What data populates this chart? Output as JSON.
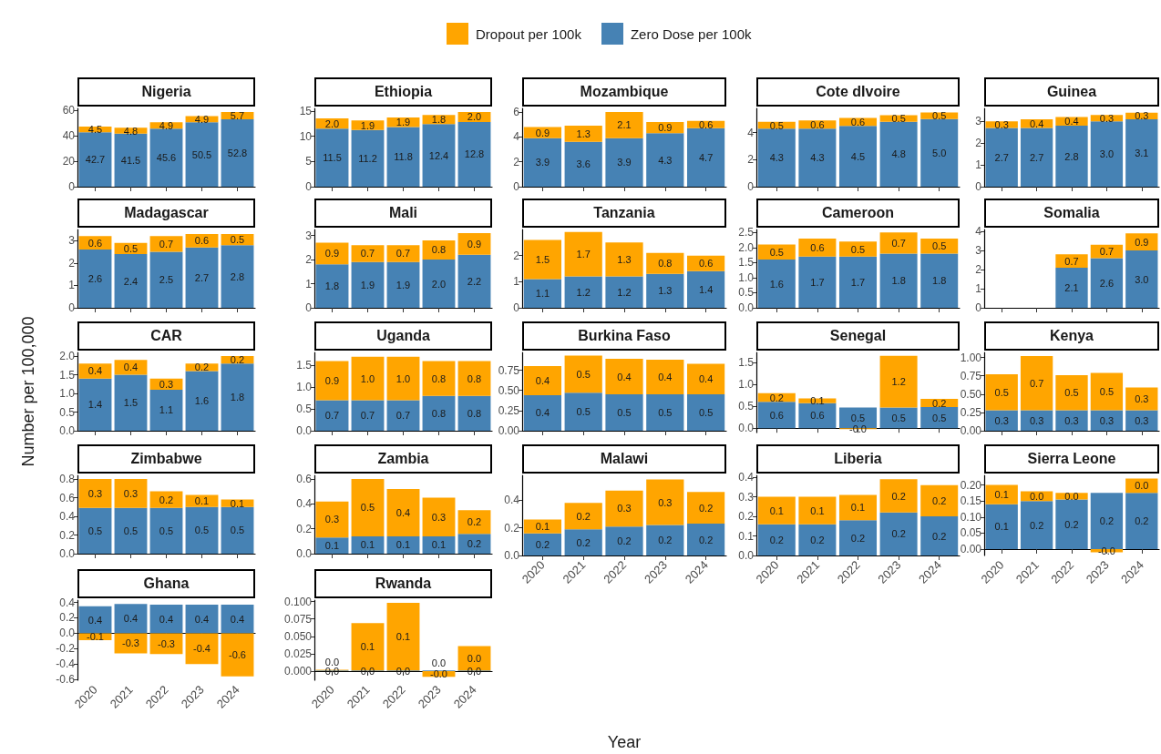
{
  "chart_data": [
    {
      "type": "bar",
      "stacked": true,
      "title": "Nigeria",
      "legend": "top",
      "tick_labels": "y",
      "categories": [
        "2020",
        "2021",
        "2022",
        "2023",
        "2024"
      ],
      "ylim": [
        0,
        61.4
      ],
      "yticks": [
        0,
        20,
        40,
        60
      ],
      "series": [
        {
          "name": "Zero Dose per 100k",
          "color": "#4682b4",
          "values": [
            42.7,
            41.5,
            45.6,
            50.5,
            52.8
          ],
          "value_labels": [
            "42.7",
            "41.5",
            "45.6",
            "50.5",
            "52.8"
          ]
        },
        {
          "name": "Dropout per 100k",
          "color": "#ffa500",
          "values": [
            4.5,
            4.8,
            4.9,
            4.9,
            5.7
          ],
          "value_labels": [
            "4.5",
            "4.8",
            "4.9",
            "4.9",
            "5.7"
          ]
        }
      ]
    },
    {
      "type": "bar",
      "stacked": true,
      "title": "Ethiopia",
      "tick_labels": "y",
      "categories": [
        "2020",
        "2021",
        "2022",
        "2023",
        "2024"
      ],
      "ylim": [
        0,
        15.5
      ],
      "yticks": [
        0,
        5,
        10,
        15
      ],
      "series": [
        {
          "name": "Zero Dose per 100k",
          "color": "#4682b4",
          "values": [
            11.5,
            11.2,
            11.8,
            12.4,
            12.8
          ],
          "value_labels": [
            "11.5",
            "11.2",
            "11.8",
            "12.4",
            "12.8"
          ]
        },
        {
          "name": "Dropout per 100k",
          "color": "#ffa500",
          "values": [
            2.0,
            1.9,
            1.9,
            1.8,
            2.0
          ],
          "value_labels": [
            "2.0",
            "1.9",
            "1.9",
            "1.8",
            "2.0"
          ]
        }
      ]
    },
    {
      "type": "bar",
      "stacked": true,
      "title": "Mozambique",
      "tick_labels": "y",
      "categories": [
        "2020",
        "2021",
        "2022",
        "2023",
        "2024"
      ],
      "ylim": [
        0,
        6.3
      ],
      "yticks": [
        0,
        2,
        4,
        6
      ],
      "series": [
        {
          "name": "Zero Dose per 100k",
          "color": "#4682b4",
          "values": [
            3.9,
            3.6,
            3.9,
            4.3,
            4.7
          ],
          "value_labels": [
            "3.9",
            "3.6",
            "3.9",
            "4.3",
            "4.7"
          ]
        },
        {
          "name": "Dropout per 100k",
          "color": "#ffa500",
          "values": [
            0.9,
            1.3,
            2.1,
            0.9,
            0.6
          ],
          "value_labels": [
            "0.9",
            "1.3",
            "2.1",
            "0.9",
            "0.6"
          ]
        }
      ]
    },
    {
      "type": "bar",
      "stacked": true,
      "title": "Cote dIvoire",
      "tick_labels": "y",
      "categories": [
        "2020",
        "2021",
        "2022",
        "2023",
        "2024"
      ],
      "ylim": [
        0,
        5.8
      ],
      "yticks": [
        0,
        2,
        4
      ],
      "series": [
        {
          "name": "Zero Dose per 100k",
          "color": "#4682b4",
          "values": [
            4.3,
            4.3,
            4.5,
            4.8,
            5.0
          ],
          "value_labels": [
            "4.3",
            "4.3",
            "4.5",
            "4.8",
            "5.0"
          ]
        },
        {
          "name": "Dropout per 100k",
          "color": "#ffa500",
          "values": [
            0.5,
            0.6,
            0.6,
            0.5,
            0.5
          ],
          "value_labels": [
            "0.5",
            "0.6",
            "0.6",
            "0.5",
            "0.5"
          ]
        }
      ]
    },
    {
      "type": "bar",
      "stacked": true,
      "title": "Guinea",
      "tick_labels": "y",
      "categories": [
        "2020",
        "2021",
        "2022",
        "2023",
        "2024"
      ],
      "ylim": [
        0,
        3.6
      ],
      "yticks": [
        0,
        1,
        2,
        3
      ],
      "series": [
        {
          "name": "Zero Dose per 100k",
          "color": "#4682b4",
          "values": [
            2.7,
            2.7,
            2.8,
            3.0,
            3.1
          ],
          "value_labels": [
            "2.7",
            "2.7",
            "2.8",
            "3.0",
            "3.1"
          ]
        },
        {
          "name": "Dropout per 100k",
          "color": "#ffa500",
          "values": [
            0.3,
            0.4,
            0.4,
            0.3,
            0.3
          ],
          "value_labels": [
            "0.3",
            "0.4",
            "0.4",
            "0.3",
            "0.3"
          ]
        }
      ]
    },
    {
      "type": "bar",
      "stacked": true,
      "title": "Madagascar",
      "tick_labels": "y",
      "categories": [
        "2020",
        "2021",
        "2022",
        "2023",
        "2024"
      ],
      "ylim": [
        0,
        3.5
      ],
      "yticks": [
        0,
        1,
        2,
        3
      ],
      "series": [
        {
          "name": "Zero Dose per 100k",
          "color": "#4682b4",
          "values": [
            2.6,
            2.4,
            2.5,
            2.7,
            2.8
          ],
          "value_labels": [
            "2.6",
            "2.4",
            "2.5",
            "2.7",
            "2.8"
          ]
        },
        {
          "name": "Dropout per 100k",
          "color": "#ffa500",
          "values": [
            0.6,
            0.5,
            0.7,
            0.6,
            0.5
          ],
          "value_labels": [
            "0.6",
            "0.5",
            "0.7",
            "0.6",
            "0.5"
          ]
        }
      ]
    },
    {
      "type": "bar",
      "stacked": true,
      "title": "Mali",
      "tick_labels": "y",
      "categories": [
        "2020",
        "2021",
        "2022",
        "2023",
        "2024"
      ],
      "ylim": [
        0,
        3.25
      ],
      "yticks": [
        0,
        1,
        2,
        3
      ],
      "series": [
        {
          "name": "Zero Dose per 100k",
          "color": "#4682b4",
          "values": [
            1.8,
            1.9,
            1.9,
            2.0,
            2.2
          ],
          "value_labels": [
            "1.8",
            "1.9",
            "1.9",
            "2.0",
            "2.2"
          ]
        },
        {
          "name": "Dropout per 100k",
          "color": "#ffa500",
          "values": [
            0.9,
            0.7,
            0.7,
            0.8,
            0.9
          ],
          "value_labels": [
            "0.9",
            "0.7",
            "0.7",
            "0.8",
            "0.9"
          ]
        }
      ]
    },
    {
      "type": "bar",
      "stacked": true,
      "title": "Tanzania",
      "tick_labels": "y",
      "categories": [
        "2020",
        "2021",
        "2022",
        "2023",
        "2024"
      ],
      "ylim": [
        0,
        3.0
      ],
      "yticks": [
        0,
        1,
        2
      ],
      "series": [
        {
          "name": "Zero Dose per 100k",
          "color": "#4682b4",
          "values": [
            1.1,
            1.2,
            1.2,
            1.3,
            1.4
          ],
          "value_labels": [
            "1.1",
            "1.2",
            "1.2",
            "1.3",
            "1.4"
          ]
        },
        {
          "name": "Dropout per 100k",
          "color": "#ffa500",
          "values": [
            1.5,
            1.7,
            1.3,
            0.8,
            0.6
          ],
          "value_labels": [
            "1.5",
            "1.7",
            "1.3",
            "0.8",
            "0.6"
          ]
        }
      ]
    },
    {
      "type": "bar",
      "stacked": true,
      "title": "Cameroon",
      "tick_labels": "y",
      "categories": [
        "2020",
        "2021",
        "2022",
        "2023",
        "2024"
      ],
      "ylim": [
        0,
        2.6
      ],
      "yticks": [
        {
          "value": 0,
          "label": "0.0"
        },
        0.5,
        {
          "value": 1,
          "label": "1.0"
        },
        1.5,
        {
          "value": 2,
          "label": "2.0"
        },
        2.5
      ],
      "series": [
        {
          "name": "Zero Dose per 100k",
          "color": "#4682b4",
          "values": [
            1.6,
            1.7,
            1.7,
            1.8,
            1.8
          ],
          "value_labels": [
            "1.6",
            "1.7",
            "1.7",
            "1.8",
            "1.8"
          ]
        },
        {
          "name": "Dropout per 100k",
          "color": "#ffa500",
          "values": [
            0.5,
            0.6,
            0.5,
            0.7,
            0.5
          ],
          "value_labels": [
            "0.5",
            "0.6",
            "0.5",
            "0.7",
            "0.5"
          ]
        }
      ]
    },
    {
      "type": "bar",
      "stacked": true,
      "title": "Somalia",
      "tick_labels": "y",
      "categories": [
        "2020",
        "2021",
        "2022",
        "2023",
        "2024"
      ],
      "ylim": [
        0,
        4.1
      ],
      "yticks": [
        0,
        1,
        2,
        3,
        4
      ],
      "series": [
        {
          "name": "Zero Dose per 100k",
          "color": "#4682b4",
          "values": [
            null,
            null,
            2.1,
            2.6,
            3.0
          ],
          "value_labels": [
            null,
            null,
            "2.1",
            "2.6",
            "3.0"
          ]
        },
        {
          "name": "Dropout per 100k",
          "color": "#ffa500",
          "values": [
            null,
            null,
            0.7,
            0.7,
            0.9
          ],
          "value_labels": [
            null,
            null,
            "0.7",
            "0.7",
            "0.9"
          ]
        }
      ]
    },
    {
      "type": "bar",
      "stacked": true,
      "title": "CAR",
      "ylabel": "Number per 100,000",
      "tick_labels": "y",
      "categories": [
        "2020",
        "2021",
        "2022",
        "2023",
        "2024"
      ],
      "ylim": [
        0,
        2.1
      ],
      "yticks": [
        {
          "value": 0,
          "label": "0.0"
        },
        0.5,
        {
          "value": 1,
          "label": "1.0"
        },
        1.5,
        {
          "value": 2,
          "label": "2.0"
        }
      ],
      "series": [
        {
          "name": "Zero Dose per 100k",
          "color": "#4682b4",
          "values": [
            1.4,
            1.5,
            1.1,
            1.6,
            1.8
          ],
          "value_labels": [
            "1.4",
            "1.5",
            "1.1",
            "1.6",
            "1.8"
          ]
        },
        {
          "name": "Dropout per 100k",
          "color": "#ffa500",
          "values": [
            0.4,
            0.4,
            0.3,
            0.2,
            0.2
          ],
          "value_labels": [
            "0.4",
            "0.4",
            "0.3",
            "0.2",
            "0.2"
          ]
        }
      ]
    },
    {
      "type": "bar",
      "stacked": true,
      "title": "Uganda",
      "tick_labels": "y",
      "categories": [
        "2020",
        "2021",
        "2022",
        "2023",
        "2024"
      ],
      "ylim": [
        0,
        1.8
      ],
      "yticks": [
        {
          "value": 0,
          "label": "0.0"
        },
        0.5,
        {
          "value": 1,
          "label": "1.0"
        },
        1.5
      ],
      "series": [
        {
          "name": "Zero Dose per 100k",
          "color": "#4682b4",
          "values": [
            0.7,
            0.7,
            0.7,
            0.8,
            0.8
          ],
          "value_labels": [
            "0.7",
            "0.7",
            "0.7",
            "0.8",
            "0.8"
          ]
        },
        {
          "name": "Dropout per 100k",
          "color": "#ffa500",
          "values": [
            0.9,
            1.0,
            1.0,
            0.8,
            0.8
          ],
          "value_labels": [
            "0.9",
            "1.0",
            "1.0",
            "0.8",
            "0.8"
          ]
        }
      ]
    },
    {
      "type": "bar",
      "stacked": true,
      "title": "Burkina Faso",
      "tick_labels": "y",
      "categories": [
        "2020",
        "2021",
        "2022",
        "2023",
        "2024"
      ],
      "ylim": [
        0,
        0.97
      ],
      "yticks": [
        {
          "value": 0,
          "label": "0.00"
        },
        0.25,
        {
          "value": 0.5,
          "label": "0.50"
        },
        0.75
      ],
      "series": [
        {
          "name": "Zero Dose per 100k",
          "color": "#4682b4",
          "values": [
            0.44,
            0.47,
            0.45,
            0.45,
            0.45
          ],
          "value_labels": [
            "0.4",
            "0.5",
            "0.5",
            "0.5",
            "0.5"
          ]
        },
        {
          "name": "Dropout per 100k",
          "color": "#ffa500",
          "values": [
            0.36,
            0.46,
            0.44,
            0.43,
            0.38
          ],
          "value_labels": [
            "0.4",
            "0.5",
            "0.4",
            "0.4",
            "0.4"
          ]
        }
      ]
    },
    {
      "type": "bar",
      "stacked": true,
      "title": "Senegal",
      "tick_labels": "y",
      "categories": [
        "2020",
        "2021",
        "2022",
        "2023",
        "2024"
      ],
      "ylim": [
        -0.1,
        1.73
      ],
      "yticks": [
        {
          "value": 0,
          "label": "0.0"
        },
        0.5,
        {
          "value": 1,
          "label": "1.0"
        },
        1.5
      ],
      "series": [
        {
          "name": "Zero Dose per 100k",
          "color": "#4682b4",
          "values": [
            0.6,
            0.57,
            0.47,
            0.47,
            0.48
          ],
          "value_labels": [
            "0.6",
            "0.6",
            "0.5",
            "0.5",
            "0.5"
          ]
        },
        {
          "name": "Dropout per 100k",
          "color": "#ffa500",
          "values": [
            0.2,
            0.11,
            -0.02,
            1.18,
            0.19
          ],
          "value_labels": [
            "0.2",
            "0.1",
            "-0.0",
            "1.2",
            "0.2"
          ]
        }
      ]
    },
    {
      "type": "bar",
      "stacked": true,
      "title": "Kenya",
      "tick_labels": "y",
      "categories": [
        "2020",
        "2021",
        "2022",
        "2023",
        "2024"
      ],
      "ylim": [
        0,
        1.07
      ],
      "yticks": [
        {
          "value": 0,
          "label": "0.00"
        },
        0.25,
        {
          "value": 0.5,
          "label": "0.50"
        },
        0.75,
        {
          "value": 1,
          "label": "1.00"
        }
      ],
      "series": [
        {
          "name": "Zero Dose per 100k",
          "color": "#4682b4",
          "values": [
            0.28,
            0.28,
            0.28,
            0.28,
            0.28
          ],
          "value_labels": [
            "0.3",
            "0.3",
            "0.3",
            "0.3",
            "0.3"
          ]
        },
        {
          "name": "Dropout per 100k",
          "color": "#ffa500",
          "values": [
            0.49,
            0.74,
            0.48,
            0.51,
            0.31
          ],
          "value_labels": [
            "0.5",
            "0.7",
            "0.5",
            "0.5",
            "0.3"
          ]
        }
      ]
    },
    {
      "type": "bar",
      "stacked": true,
      "title": "Zimbabwe",
      "tick_labels": "y",
      "categories": [
        "2020",
        "2021",
        "2022",
        "2023",
        "2024"
      ],
      "ylim": [
        0,
        0.84
      ],
      "yticks": [
        {
          "value": 0,
          "label": "0.0"
        },
        0.2,
        0.4,
        0.6,
        0.8
      ],
      "series": [
        {
          "name": "Zero Dose per 100k",
          "color": "#4682b4",
          "values": [
            0.49,
            0.49,
            0.49,
            0.5,
            0.5
          ],
          "value_labels": [
            "0.5",
            "0.5",
            "0.5",
            "0.5",
            "0.5"
          ]
        },
        {
          "name": "Dropout per 100k",
          "color": "#ffa500",
          "values": [
            0.31,
            0.31,
            0.18,
            0.13,
            0.08
          ],
          "value_labels": [
            "0.3",
            "0.3",
            "0.2",
            "0.1",
            "0.1"
          ]
        }
      ]
    },
    {
      "type": "bar",
      "stacked": true,
      "title": "Zambia",
      "tick_labels": "y",
      "categories": [
        "2020",
        "2021",
        "2022",
        "2023",
        "2024"
      ],
      "ylim": [
        0,
        0.63
      ],
      "yticks": [
        {
          "value": 0,
          "label": "0.0"
        },
        0.2,
        0.4,
        0.6
      ],
      "series": [
        {
          "name": "Zero Dose per 100k",
          "color": "#4682b4",
          "values": [
            0.13,
            0.14,
            0.14,
            0.14,
            0.16
          ],
          "value_labels": [
            "0.1",
            "0.1",
            "0.1",
            "0.1",
            "0.2"
          ]
        },
        {
          "name": "Dropout per 100k",
          "color": "#ffa500",
          "values": [
            0.29,
            0.46,
            0.38,
            0.31,
            0.19
          ],
          "value_labels": [
            "0.3",
            "0.5",
            "0.4",
            "0.3",
            "0.2"
          ]
        }
      ]
    },
    {
      "type": "bar",
      "stacked": true,
      "title": "Malawi",
      "xlabel": "Year",
      "categories": [
        "2020",
        "2021",
        "2022",
        "2023",
        "2024"
      ],
      "ylim": [
        0,
        0.58
      ],
      "yticks": [
        {
          "value": 0,
          "label": "0.0"
        },
        0.2,
        0.4
      ],
      "series": [
        {
          "name": "Zero Dose per 100k",
          "color": "#4682b4",
          "values": [
            0.16,
            0.19,
            0.21,
            0.22,
            0.23
          ],
          "value_labels": [
            "0.2",
            "0.2",
            "0.2",
            "0.2",
            "0.2"
          ]
        },
        {
          "name": "Dropout per 100k",
          "color": "#ffa500",
          "values": [
            0.1,
            0.19,
            0.26,
            0.33,
            0.23
          ],
          "value_labels": [
            "0.1",
            "0.2",
            "0.3",
            "0.3",
            "0.2"
          ]
        }
      ]
    },
    {
      "type": "bar",
      "stacked": true,
      "title": "Liberia",
      "categories": [
        "2020",
        "2021",
        "2022",
        "2023",
        "2024"
      ],
      "ylim": [
        0,
        0.41
      ],
      "yticks": [
        {
          "value": 0,
          "label": "0.0"
        },
        0.1,
        0.2,
        0.3,
        0.4
      ],
      "series": [
        {
          "name": "Zero Dose per 100k",
          "color": "#4682b4",
          "values": [
            0.16,
            0.16,
            0.18,
            0.22,
            0.2
          ],
          "value_labels": [
            "0.2",
            "0.2",
            "0.2",
            "0.2",
            "0.2"
          ]
        },
        {
          "name": "Dropout per 100k",
          "color": "#ffa500",
          "values": [
            0.14,
            0.14,
            0.13,
            0.17,
            0.16
          ],
          "value_labels": [
            "0.1",
            "0.1",
            "0.1",
            "0.2",
            "0.2"
          ]
        }
      ]
    },
    {
      "type": "bar",
      "stacked": true,
      "title": "Sierra Leone",
      "categories": [
        "2020",
        "2021",
        "2022",
        "2023",
        "2024"
      ],
      "ylim": [
        -0.02,
        0.23
      ],
      "yticks": [
        {
          "value": 0,
          "label": "0.00"
        },
        0.05,
        {
          "value": 0.1,
          "label": "0.10"
        },
        0.15,
        {
          "value": 0.2,
          "label": "0.20"
        }
      ],
      "series": [
        {
          "name": "Zero Dose per 100k",
          "color": "#4682b4",
          "values": [
            0.14,
            0.15,
            0.155,
            0.175,
            0.175
          ],
          "value_labels": [
            "0.1",
            "0.2",
            "0.2",
            "0.2",
            "0.2"
          ]
        },
        {
          "name": "Dropout per 100k",
          "color": "#ffa500",
          "values": [
            0.06,
            0.03,
            0.02,
            -0.01,
            0.045
          ],
          "value_labels": [
            "0.1",
            "0.0",
            "0.0",
            "-0.0",
            "0.0"
          ]
        }
      ]
    },
    {
      "type": "bar",
      "stacked": true,
      "title": "Ghana",
      "categories": [
        "2020",
        "2021",
        "2022",
        "2023",
        "2024"
      ],
      "ylim": [
        -0.61,
        0.43
      ],
      "yticks": [
        -0.6,
        -0.4,
        -0.2,
        {
          "value": 0,
          "label": "0.0"
        },
        0.2,
        0.4
      ],
      "series": [
        {
          "name": "Zero Dose per 100k",
          "color": "#4682b4",
          "values": [
            0.35,
            0.38,
            0.37,
            0.37,
            0.37
          ],
          "value_labels": [
            "0.4",
            "0.4",
            "0.4",
            "0.4",
            "0.4"
          ]
        },
        {
          "name": "Dropout per 100k",
          "color": "#ffa500",
          "values": [
            -0.09,
            -0.26,
            -0.27,
            -0.4,
            -0.56
          ],
          "value_labels": [
            "-0.1",
            "-0.3",
            "-0.3",
            "-0.4",
            "-0.6"
          ]
        }
      ]
    },
    {
      "type": "bar",
      "stacked": true,
      "title": "Rwanda",
      "categories": [
        "2020",
        "2021",
        "2022",
        "2023",
        "2024"
      ],
      "ylim": [
        -0.013,
        0.102
      ],
      "yticks": [
        {
          "value": 0,
          "label": "0.000"
        },
        0.025,
        {
          "value": 0.05,
          "label": "0.050"
        },
        0.075,
        {
          "value": 0.1,
          "label": "0.100"
        }
      ],
      "series": [
        {
          "name": "Zero Dose per 100k",
          "color": "#4682b4",
          "values": [
            0.001,
            0.001,
            0.001,
            0.001,
            0.001
          ],
          "value_labels": [
            "0.0",
            "0.0",
            "0.0",
            "0.0",
            "0.0"
          ]
        },
        {
          "name": "Dropout per 100k",
          "color": "#ffa500",
          "values": [
            0.001,
            0.068,
            0.097,
            -0.008,
            0.035
          ],
          "value_labels": [
            "0.0",
            "0.1",
            "0.1",
            "-0.0",
            "0.0"
          ]
        }
      ]
    }
  ]
}
